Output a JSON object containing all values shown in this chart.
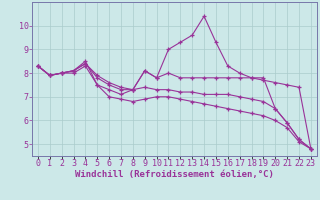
{
  "xlabel": "Windchill (Refroidissement éolien,°C)",
  "background_color": "#cce8e8",
  "grid_color": "#aacccc",
  "line_color": "#993399",
  "spine_color": "#7777aa",
  "x_values": [
    0,
    1,
    2,
    3,
    4,
    5,
    6,
    7,
    8,
    9,
    10,
    11,
    12,
    13,
    14,
    15,
    16,
    17,
    18,
    19,
    20,
    21,
    22,
    23
  ],
  "series1": [
    8.3,
    7.9,
    8.0,
    8.1,
    8.5,
    7.5,
    7.3,
    7.1,
    7.3,
    8.1,
    7.8,
    9.0,
    9.3,
    9.6,
    10.4,
    9.3,
    8.3,
    8.0,
    7.8,
    7.8,
    6.5,
    5.9,
    5.2,
    4.8
  ],
  "series2": [
    8.3,
    7.9,
    8.0,
    8.1,
    8.4,
    7.9,
    7.6,
    7.4,
    7.3,
    8.1,
    7.8,
    8.0,
    7.8,
    7.8,
    7.8,
    7.8,
    7.8,
    7.8,
    7.8,
    7.7,
    7.6,
    7.5,
    7.4,
    4.8
  ],
  "series3": [
    8.3,
    7.9,
    8.0,
    8.1,
    8.4,
    7.8,
    7.5,
    7.3,
    7.3,
    7.4,
    7.3,
    7.3,
    7.2,
    7.2,
    7.1,
    7.1,
    7.1,
    7.0,
    6.9,
    6.8,
    6.5,
    5.9,
    5.2,
    4.8
  ],
  "series4": [
    8.3,
    7.9,
    8.0,
    8.0,
    8.3,
    7.5,
    7.0,
    6.9,
    6.8,
    6.9,
    7.0,
    7.0,
    6.9,
    6.8,
    6.7,
    6.6,
    6.5,
    6.4,
    6.3,
    6.2,
    6.0,
    5.7,
    5.1,
    4.8
  ],
  "ylim": [
    4.5,
    11.0
  ],
  "yticks": [
    5,
    6,
    7,
    8,
    9,
    10
  ],
  "xlim": [
    -0.5,
    23.5
  ],
  "xlabel_fontsize": 6.5,
  "tick_fontsize": 6.0
}
